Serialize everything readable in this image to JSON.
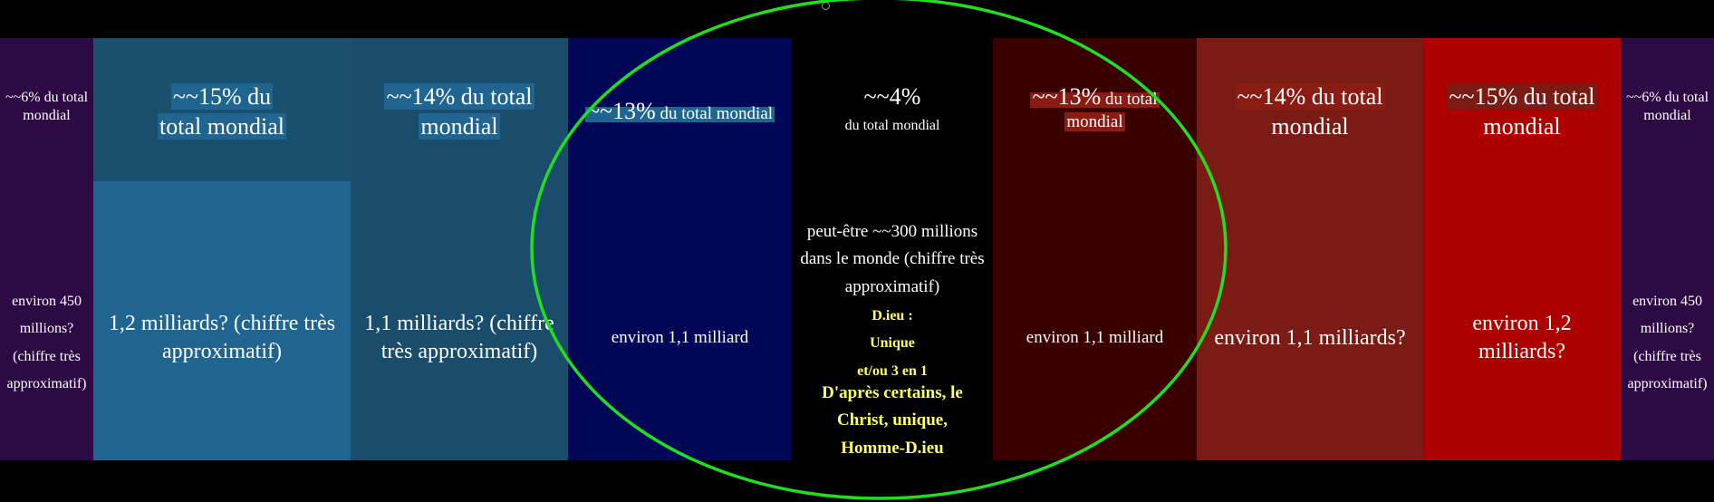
{
  "columns": [
    {
      "id": "c1",
      "bg": "#2e0a45",
      "top": "~~6% du total mondial",
      "mid": "environ 450 millions? (chiffre très approximatif)"
    },
    {
      "id": "c2",
      "bg": "#1a4f6e",
      "midbg": "#1f6590",
      "top_a": "~~15% du",
      "top_b": "total mondial",
      "mid": "1,2 milliards? (chiffre très approximatif)"
    },
    {
      "id": "c3",
      "bg": "#1a4d6b",
      "top_a": "~~14% du total",
      "top_b": "mondial",
      "mid": "1,1 milliards? (chiffre très approximatif)"
    },
    {
      "id": "c4",
      "bg": "#020657",
      "top_big": "~~13%",
      "top_small": " du total mondial",
      "mid": "environ 1,1 milliard"
    },
    {
      "id": "c5",
      "bg": "#000000",
      "top_big": "~~4%",
      "top_small": "du total mondial",
      "mid_lines": [
        "peut-être ~~300  millions",
        "dans le monde (chiffre très",
        "approximatif)"
      ],
      "yellow_lines": [
        "D.ieu :",
        "Unique",
        "et/ou 3 en 1"
      ],
      "yellow_big": [
        "D'après certains, le",
        "Christ, unique,",
        "Homme-D.ieu"
      ]
    },
    {
      "id": "c6",
      "bg": "#3a0000",
      "top_big": "~~13%",
      "top_small": " du total",
      "top_b": "mondial",
      "mid": "environ 1,1 milliard"
    },
    {
      "id": "c7",
      "bg": "#7a1c14",
      "top_a": "~~14% du total",
      "top_b": "mondial",
      "mid": "environ 1,1 milliards?"
    },
    {
      "id": "c8",
      "bg": "#ad0000",
      "top_a": "~~15% du total",
      "top_b": "mondial",
      "mid": "environ 1,2 milliards?"
    },
    {
      "id": "c9",
      "bg": "#2e0a45",
      "top": "~~6% du total mondial",
      "mid": "environ 450 millions? (chiffre très approximatif)"
    }
  ],
  "colors": {
    "ring": "#22dd22"
  }
}
